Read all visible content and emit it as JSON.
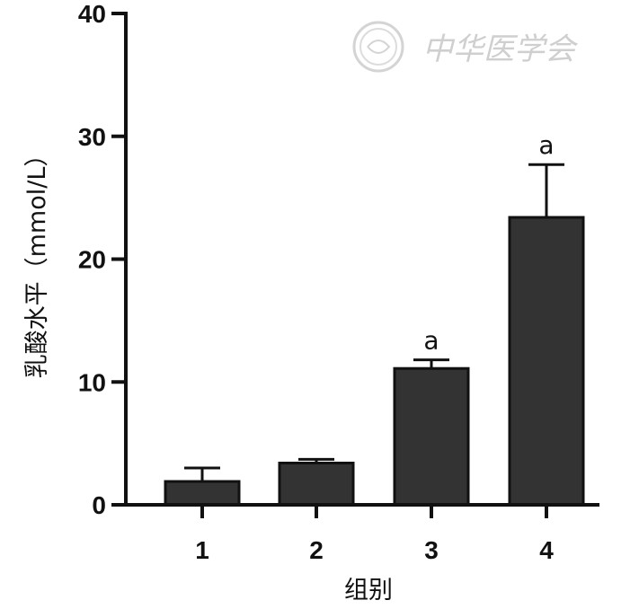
{
  "watermark": {
    "text": "中华医学会",
    "color": "#d0d0d0"
  },
  "chart_data": {
    "type": "bar",
    "categories": [
      "1",
      "2",
      "3",
      "4"
    ],
    "values": [
      1.9,
      3.4,
      11.1,
      23.4
    ],
    "error_upper": [
      1.1,
      0.3,
      0.7,
      4.3
    ],
    "significance_labels": [
      "",
      "",
      "a",
      "a"
    ],
    "xlabel": "组别",
    "ylabel": "乳酸水平（mmol/L）",
    "ylim": [
      0,
      40
    ],
    "yticks": [
      0,
      10,
      20,
      30,
      40
    ],
    "grid": false,
    "legend": "none",
    "bar_color": "#333333",
    "axis_color": "#111111"
  }
}
